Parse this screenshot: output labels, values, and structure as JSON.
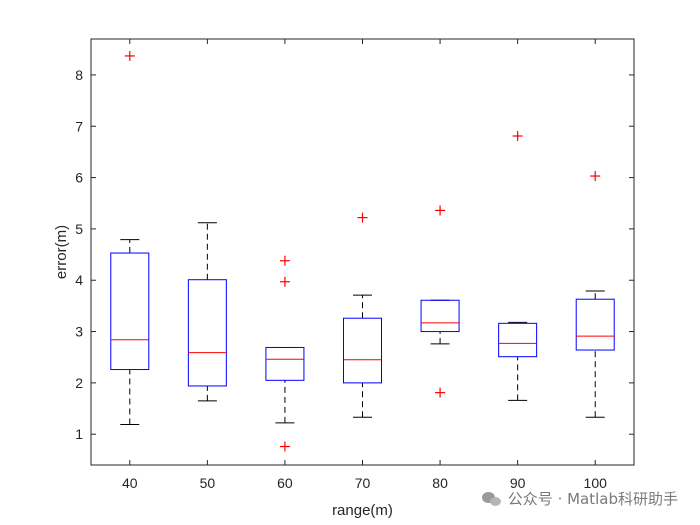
{
  "chart_data": {
    "type": "box",
    "xlabel": "range(m)",
    "ylabel": "error(m)",
    "xlim": [
      0.5,
      7.5
    ],
    "ylim": [
      0.4,
      8.7
    ],
    "yticks": [
      1,
      2,
      3,
      4,
      5,
      6,
      7,
      8
    ],
    "categories": [
      "40",
      "50",
      "60",
      "70",
      "80",
      "90",
      "100"
    ],
    "boxes": [
      {
        "category": "40",
        "whisker_low": 1.19,
        "q1": 2.26,
        "median": 2.84,
        "q3": 4.53,
        "whisker_high": 4.79,
        "outliers": [
          8.37
        ]
      },
      {
        "category": "50",
        "whisker_low": 1.65,
        "q1": 1.94,
        "median": 2.59,
        "q3": 4.01,
        "whisker_high": 5.12,
        "outliers": []
      },
      {
        "category": "60",
        "whisker_low": 1.22,
        "q1": 2.05,
        "median": 2.46,
        "q3": 2.69,
        "whisker_high": 2.69,
        "outliers": [
          0.76,
          3.97,
          4.38
        ]
      },
      {
        "category": "70",
        "whisker_low": 1.33,
        "q1": 2.0,
        "median": 2.45,
        "q3": 3.26,
        "whisker_high": 3.71,
        "outliers": [
          5.22
        ]
      },
      {
        "category": "80",
        "whisker_low": 2.76,
        "q1": 3.0,
        "median": 3.17,
        "q3": 3.61,
        "whisker_high": 3.61,
        "outliers": [
          1.81,
          5.36
        ]
      },
      {
        "category": "90",
        "whisker_low": 1.66,
        "q1": 2.51,
        "median": 2.77,
        "q3": 3.16,
        "whisker_high": 3.18,
        "outliers": [
          6.81
        ]
      },
      {
        "category": "100",
        "whisker_low": 1.33,
        "q1": 2.64,
        "median": 2.91,
        "q3": 3.63,
        "whisker_high": 3.79,
        "outliers": [
          6.03
        ]
      }
    ],
    "colors": {
      "box": "#0000ff",
      "median": "#ff0000",
      "whisker": "#000000",
      "outlier": "#ff0000",
      "axis": "#262626"
    }
  },
  "watermark": {
    "icon": "wechat-icon",
    "text": "公众号 · Matlab科研助手"
  }
}
